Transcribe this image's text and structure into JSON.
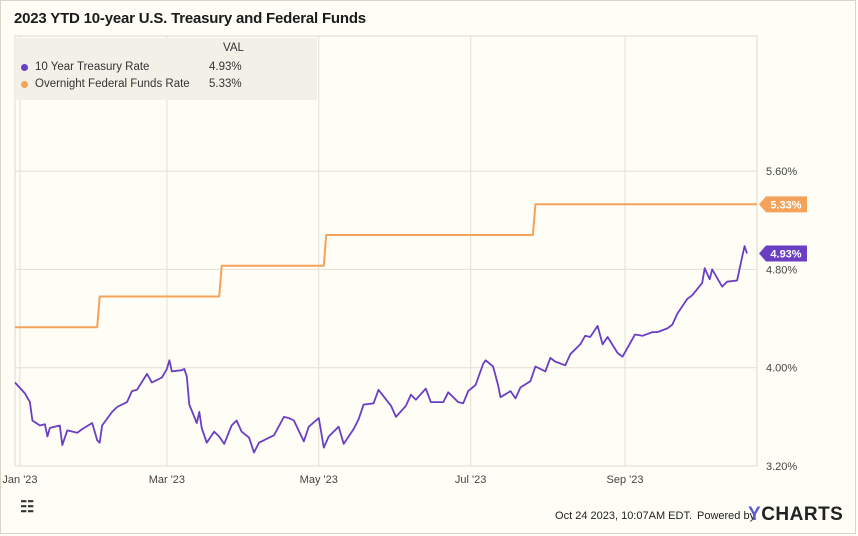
{
  "title": "2023 YTD 10-year U.S. Treasury and Federal Funds",
  "legend": {
    "header": "VAL",
    "items": [
      {
        "label": "10 Year Treasury Rate",
        "value": "4.93%",
        "color": "#6a3fc4"
      },
      {
        "label": "Overnight Federal Funds Rate",
        "value": "5.33%",
        "color": "#f5a35b"
      }
    ]
  },
  "footer": {
    "timestamp": "Oct 24 2023, 10:07AM EDT.",
    "powered_by": "Powered by",
    "brand_y": "Y",
    "brand_rest": "CHARTS",
    "logo_glyph": "☷"
  },
  "chart_data": {
    "type": "line",
    "title": "2023 YTD 10-year U.S. Treasury and Federal Funds",
    "x_tick_labels": [
      "Jan '23",
      "Mar '23",
      "May '23",
      "Jul '23",
      "Sep '23"
    ],
    "x_tick_dates": [
      "2023-01-01",
      "2023-03-01",
      "2023-05-01",
      "2023-07-01",
      "2023-09-01"
    ],
    "x_range": [
      "2022-12-30",
      "2023-10-24"
    ],
    "y_tick_labels": [
      "3.20%",
      "4.00%",
      "4.80%",
      "5.60%"
    ],
    "y_ticks": [
      3.2,
      4.0,
      4.8,
      5.6
    ],
    "ylim": [
      3.2,
      6.7
    ],
    "grid": true,
    "legend_position": "top-left",
    "series": [
      {
        "name": "10 Year Treasury Rate",
        "color": "#6a3fc4",
        "end_label": "4.93%",
        "points": [
          [
            "2022-12-30",
            3.88
          ],
          [
            "2023-01-03",
            3.79
          ],
          [
            "2023-01-05",
            3.72
          ],
          [
            "2023-01-06",
            3.57
          ],
          [
            "2023-01-09",
            3.53
          ],
          [
            "2023-01-11",
            3.54
          ],
          [
            "2023-01-12",
            3.44
          ],
          [
            "2023-01-13",
            3.51
          ],
          [
            "2023-01-17",
            3.53
          ],
          [
            "2023-01-18",
            3.37
          ],
          [
            "2023-01-20",
            3.49
          ],
          [
            "2023-01-24",
            3.47
          ],
          [
            "2023-01-26",
            3.5
          ],
          [
            "2023-01-30",
            3.55
          ],
          [
            "2023-02-01",
            3.41
          ],
          [
            "2023-02-02",
            3.39
          ],
          [
            "2023-02-03",
            3.53
          ],
          [
            "2023-02-07",
            3.64
          ],
          [
            "2023-02-09",
            3.68
          ],
          [
            "2023-02-13",
            3.72
          ],
          [
            "2023-02-15",
            3.81
          ],
          [
            "2023-02-17",
            3.82
          ],
          [
            "2023-02-21",
            3.95
          ],
          [
            "2023-02-23",
            3.88
          ],
          [
            "2023-02-27",
            3.92
          ],
          [
            "2023-03-01",
            3.99
          ],
          [
            "2023-03-02",
            4.06
          ],
          [
            "2023-03-03",
            3.97
          ],
          [
            "2023-03-07",
            3.98
          ],
          [
            "2023-03-08",
            3.99
          ],
          [
            "2023-03-09",
            3.93
          ],
          [
            "2023-03-10",
            3.7
          ],
          [
            "2023-03-13",
            3.55
          ],
          [
            "2023-03-14",
            3.64
          ],
          [
            "2023-03-15",
            3.51
          ],
          [
            "2023-03-17",
            3.39
          ],
          [
            "2023-03-20",
            3.48
          ],
          [
            "2023-03-22",
            3.44
          ],
          [
            "2023-03-24",
            3.38
          ],
          [
            "2023-03-27",
            3.53
          ],
          [
            "2023-03-29",
            3.57
          ],
          [
            "2023-03-31",
            3.48
          ],
          [
            "2023-04-03",
            3.43
          ],
          [
            "2023-04-05",
            3.31
          ],
          [
            "2023-04-07",
            3.39
          ],
          [
            "2023-04-11",
            3.43
          ],
          [
            "2023-04-13",
            3.45
          ],
          [
            "2023-04-17",
            3.6
          ],
          [
            "2023-04-19",
            3.59
          ],
          [
            "2023-04-21",
            3.57
          ],
          [
            "2023-04-25",
            3.4
          ],
          [
            "2023-04-27",
            3.52
          ],
          [
            "2023-05-01",
            3.59
          ],
          [
            "2023-05-03",
            3.35
          ],
          [
            "2023-05-05",
            3.44
          ],
          [
            "2023-05-09",
            3.52
          ],
          [
            "2023-05-11",
            3.38
          ],
          [
            "2023-05-15",
            3.5
          ],
          [
            "2023-05-17",
            3.58
          ],
          [
            "2023-05-19",
            3.7
          ],
          [
            "2023-05-23",
            3.71
          ],
          [
            "2023-05-25",
            3.82
          ],
          [
            "2023-05-30",
            3.69
          ],
          [
            "2023-06-01",
            3.6
          ],
          [
            "2023-06-05",
            3.69
          ],
          [
            "2023-06-07",
            3.78
          ],
          [
            "2023-06-09",
            3.74
          ],
          [
            "2023-06-13",
            3.83
          ],
          [
            "2023-06-15",
            3.72
          ],
          [
            "2023-06-20",
            3.72
          ],
          [
            "2023-06-22",
            3.8
          ],
          [
            "2023-06-26",
            3.72
          ],
          [
            "2023-06-28",
            3.71
          ],
          [
            "2023-06-30",
            3.81
          ],
          [
            "2023-07-03",
            3.86
          ],
          [
            "2023-07-06",
            4.03
          ],
          [
            "2023-07-07",
            4.06
          ],
          [
            "2023-07-10",
            4.01
          ],
          [
            "2023-07-12",
            3.86
          ],
          [
            "2023-07-13",
            3.76
          ],
          [
            "2023-07-17",
            3.81
          ],
          [
            "2023-07-19",
            3.75
          ],
          [
            "2023-07-21",
            3.84
          ],
          [
            "2023-07-25",
            3.89
          ],
          [
            "2023-07-27",
            4.01
          ],
          [
            "2023-07-31",
            3.97
          ],
          [
            "2023-08-02",
            4.08
          ],
          [
            "2023-08-04",
            4.05
          ],
          [
            "2023-08-08",
            4.02
          ],
          [
            "2023-08-10",
            4.11
          ],
          [
            "2023-08-14",
            4.19
          ],
          [
            "2023-08-16",
            4.26
          ],
          [
            "2023-08-18",
            4.25
          ],
          [
            "2023-08-21",
            4.34
          ],
          [
            "2023-08-23",
            4.19
          ],
          [
            "2023-08-25",
            4.25
          ],
          [
            "2023-08-29",
            4.12
          ],
          [
            "2023-08-31",
            4.09
          ],
          [
            "2023-09-05",
            4.27
          ],
          [
            "2023-09-08",
            4.26
          ],
          [
            "2023-09-12",
            4.29
          ],
          [
            "2023-09-14",
            4.29
          ],
          [
            "2023-09-18",
            4.32
          ],
          [
            "2023-09-20",
            4.35
          ],
          [
            "2023-09-22",
            4.44
          ],
          [
            "2023-09-26",
            4.56
          ],
          [
            "2023-09-28",
            4.59
          ],
          [
            "2023-10-02",
            4.69
          ],
          [
            "2023-10-03",
            4.81
          ],
          [
            "2023-10-05",
            4.72
          ],
          [
            "2023-10-06",
            4.8
          ],
          [
            "2023-10-10",
            4.66
          ],
          [
            "2023-10-12",
            4.7
          ],
          [
            "2023-10-16",
            4.71
          ],
          [
            "2023-10-18",
            4.9
          ],
          [
            "2023-10-19",
            4.99
          ],
          [
            "2023-10-20",
            4.93
          ]
        ]
      },
      {
        "name": "Overnight Federal Funds Rate",
        "color": "#f5a35b",
        "end_label": "5.33%",
        "points": [
          [
            "2022-12-30",
            4.33
          ],
          [
            "2023-02-01",
            4.33
          ],
          [
            "2023-02-02",
            4.58
          ],
          [
            "2023-03-22",
            4.58
          ],
          [
            "2023-03-23",
            4.83
          ],
          [
            "2023-05-03",
            4.83
          ],
          [
            "2023-05-04",
            5.08
          ],
          [
            "2023-07-26",
            5.08
          ],
          [
            "2023-07-27",
            5.33
          ],
          [
            "2023-10-24",
            5.33
          ]
        ]
      }
    ]
  }
}
